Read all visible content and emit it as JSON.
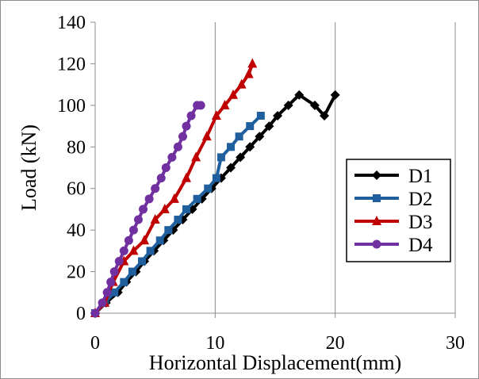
{
  "chart_data": {
    "type": "line",
    "title": "",
    "xlabel": "Horizontal Displacement(mm)",
    "ylabel": "Load (kN)",
    "xlim": [
      0,
      30
    ],
    "ylim": [
      0,
      140
    ],
    "xticks": [
      0,
      10,
      20,
      30
    ],
    "yticks": [
      0,
      20,
      40,
      60,
      80,
      100,
      120,
      140
    ],
    "grid": "vertical",
    "legend_position": "right",
    "series": [
      {
        "name": "D1",
        "color": "#000000",
        "marker": "diamond",
        "x": [
          0,
          0.9,
          1.9,
          2.6,
          3.4,
          4.1,
          4.9,
          5.7,
          6.5,
          7.3,
          8.1,
          8.9,
          9.7,
          10.5,
          11.3,
          12.1,
          12.9,
          13.7,
          14.5,
          15.2,
          16.1,
          17.0,
          18.3,
          19.1,
          20.0
        ],
        "y": [
          0,
          5,
          10,
          15,
          20,
          25,
          30,
          35,
          40,
          45,
          50,
          55,
          60,
          65,
          70,
          75,
          80,
          85,
          90,
          95,
          100,
          105,
          100,
          95,
          105
        ]
      },
      {
        "name": "D2",
        "color": "#1f5f9e",
        "marker": "square",
        "x": [
          0,
          0.8,
          1.6,
          2.4,
          3.1,
          3.9,
          4.6,
          5.4,
          6.1,
          6.9,
          7.6,
          8.5,
          9.4,
          10.1,
          10.5,
          11.3,
          12.0,
          12.9,
          13.8
        ],
        "y": [
          0,
          5,
          10,
          15,
          20,
          25,
          30,
          35,
          40,
          45,
          50,
          55,
          60,
          65,
          75,
          80,
          85,
          90,
          95
        ]
      },
      {
        "name": "D3",
        "color": "#c00000",
        "marker": "triangle",
        "x": [
          0,
          0.8,
          1.5,
          2.4,
          3.2,
          4.1,
          5.0,
          5.8,
          6.6,
          7.6,
          8.4,
          9.3,
          10.1,
          10.8,
          11.5,
          12.2,
          12.8,
          13.1
        ],
        "y": [
          0,
          5,
          15,
          25,
          30,
          35,
          45,
          50,
          55,
          65,
          75,
          85,
          95,
          100,
          105,
          110,
          115,
          120
        ]
      },
      {
        "name": "D4",
        "color": "#7030a0",
        "marker": "circle",
        "x": [
          0,
          0.6,
          1.0,
          1.3,
          1.6,
          2.0,
          2.4,
          2.8,
          3.2,
          3.6,
          4.0,
          4.5,
          5.0,
          5.5,
          5.9,
          6.4,
          6.9,
          7.3,
          7.6,
          8.0,
          8.5,
          8.8
        ],
        "y": [
          0,
          5,
          10,
          15,
          20,
          25,
          30,
          35,
          40,
          45,
          50,
          55,
          60,
          65,
          70,
          75,
          80,
          85,
          90,
          95,
          100,
          100
        ]
      }
    ]
  }
}
